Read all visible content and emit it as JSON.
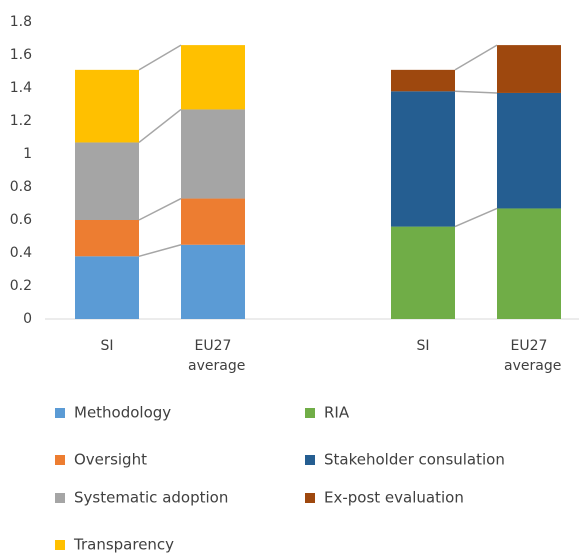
{
  "chart_data": {
    "type": "stacked_bar",
    "ylim": [
      0,
      1.8
    ],
    "yticks": [
      0,
      0.2,
      0.4,
      0.6,
      0.8,
      1,
      1.2,
      1.4,
      1.6,
      1.8
    ],
    "groups": [
      {
        "categories": [
          "SI",
          "EU27 average"
        ],
        "series": [
          {
            "name": "Methodology",
            "color": "#5b9bd5",
            "values": [
              0.38,
              0.45
            ]
          },
          {
            "name": "Oversight",
            "color": "#ed7d31",
            "values": [
              0.22,
              0.28
            ]
          },
          {
            "name": "Systematic adoption",
            "color": "#a5a5a5",
            "values": [
              0.47,
              0.54
            ]
          },
          {
            "name": "Transparency",
            "color": "#ffc000",
            "values": [
              0.44,
              0.39
            ]
          }
        ]
      },
      {
        "categories": [
          "SI",
          "EU27 average"
        ],
        "series": [
          {
            "name": "RIA",
            "color": "#70ad47",
            "values": [
              0.56,
              0.67
            ]
          },
          {
            "name": "Stakeholder consulation",
            "color": "#255e91",
            "values": [
              0.82,
              0.7
            ]
          },
          {
            "name": "Ex-post evaluation",
            "color": "#9e480e",
            "values": [
              0.13,
              0.29
            ]
          }
        ]
      }
    ]
  }
}
